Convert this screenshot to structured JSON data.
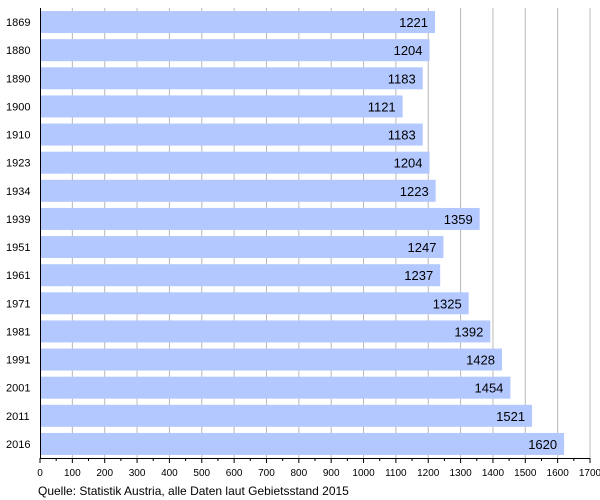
{
  "chart_data": {
    "type": "bar",
    "orientation": "horizontal",
    "categories": [
      "1869",
      "1880",
      "1890",
      "1900",
      "1910",
      "1923",
      "1934",
      "1939",
      "1951",
      "1961",
      "1971",
      "1981",
      "1991",
      "2001",
      "2011",
      "2016"
    ],
    "values": [
      1221,
      1204,
      1183,
      1121,
      1183,
      1204,
      1223,
      1359,
      1247,
      1237,
      1325,
      1392,
      1428,
      1454,
      1521,
      1620
    ],
    "xlim": [
      0,
      1700
    ],
    "xticks": [
      0,
      100,
      200,
      300,
      400,
      500,
      600,
      700,
      800,
      900,
      1000,
      1100,
      1200,
      1300,
      1400,
      1500,
      1600,
      1700
    ],
    "grid": "vertical",
    "bar_color": "#b3c8ff",
    "grid_color": "#b8b8b8",
    "source": "Quelle: Statistik Austria, alle Daten laut Gebietsstand 2015"
  }
}
